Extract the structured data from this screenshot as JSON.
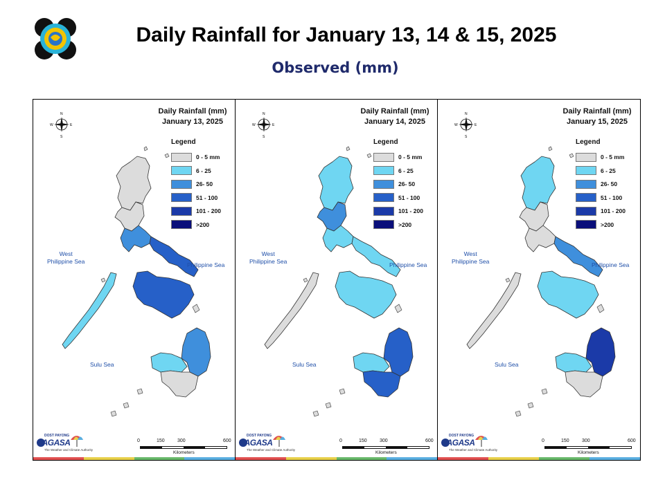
{
  "header": {
    "title": "Daily Rainfall for January 13, 14 & 15, 2025",
    "subtitle": "Observed (mm)"
  },
  "legend": {
    "title": "Legend",
    "items": [
      {
        "label": "0 - 5 mm",
        "color": "#dcdcdc"
      },
      {
        "label": "6 - 25",
        "color": "#6fd6f2"
      },
      {
        "label": "26- 50",
        "color": "#3f8fdc"
      },
      {
        "label": "51 - 100",
        "color": "#2660c8"
      },
      {
        "label": "101 - 200",
        "color": "#1b3aa8"
      },
      {
        "label": ">200",
        "color": "#0a0f7a"
      }
    ]
  },
  "compass": {
    "n": "N",
    "s": "S",
    "e": "E",
    "w": "W"
  },
  "seas": {
    "west": "West\nPhilippine Sea",
    "east": "Philippine Sea",
    "sulu": "Sulu Sea"
  },
  "scale": {
    "ticks": [
      "0",
      "150",
      "300",
      "600"
    ],
    "unit": "Kilometers"
  },
  "branding": {
    "small": "DOST PAYONG",
    "name": "PAGASA",
    "tagline": "The Weather and Climate Authority"
  },
  "stripe_colors": [
    "#e05050",
    "#e8d04a",
    "#68b86a",
    "#5aaee0"
  ],
  "panels": [
    {
      "heading": "Daily Rainfall (mm)",
      "date": "January 13, 2025",
      "rainfall_by_region": {
        "northern_luzon": "0 - 5 mm",
        "central_luzon": "0 - 5 mm",
        "southern_luzon": "26- 50",
        "bicol": "51 - 100",
        "visayas": "51 - 100",
        "palawan": "6 - 25",
        "western_mindanao": "6 - 25",
        "eastern_mindanao": "26- 50",
        "southern_mindanao": "0 - 5 mm"
      }
    },
    {
      "heading": "Daily Rainfall (mm)",
      "date": "January 14, 2025",
      "rainfall_by_region": {
        "northern_luzon": "6 - 25",
        "central_luzon": "26- 50",
        "southern_luzon": "6 - 25",
        "bicol": "6 - 25",
        "visayas": "6 - 25",
        "palawan": "0 - 5 mm",
        "western_mindanao": "6 - 25",
        "eastern_mindanao": "51 - 100",
        "southern_mindanao": "51 - 100"
      }
    },
    {
      "heading": "Daily Rainfall (mm)",
      "date": "January 15, 2025",
      "rainfall_by_region": {
        "northern_luzon": "6 - 25",
        "central_luzon": "0 - 5 mm",
        "southern_luzon": "0 - 5 mm",
        "bicol": "26- 50",
        "visayas": "6 - 25",
        "palawan": "0 - 5 mm",
        "western_mindanao": "6 - 25",
        "eastern_mindanao": "101 - 200",
        "southern_mindanao": "0 - 5 mm"
      }
    }
  ]
}
